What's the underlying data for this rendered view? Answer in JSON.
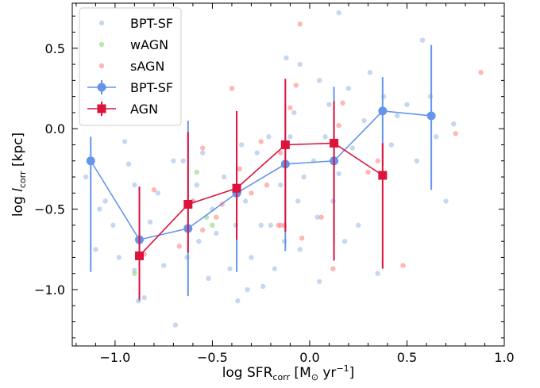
{
  "chart_data": {
    "type": "scatter",
    "xlabel": {
      "pre": "log SFR",
      "sub": "corr",
      "mid": " [M",
      "sun": "⊙",
      "yr": " yr",
      "sup": "−1",
      "post": "]"
    },
    "ylabel": {
      "pre": "log ",
      "l": "l",
      "sub": "corr",
      "post": " [kpc]"
    },
    "xlim": [
      -1.22,
      1.0
    ],
    "ylim": [
      -1.35,
      0.78
    ],
    "xticks": [
      -1.0,
      -0.5,
      0.0,
      0.5,
      1.0
    ],
    "xtick_labels": [
      "−1.0",
      "−0.5",
      "0.0",
      "0.5",
      "1.0"
    ],
    "yticks": [
      -1.0,
      -0.5,
      0.0,
      0.5
    ],
    "ytick_labels": [
      "−1.0",
      "−0.5",
      "0.0",
      "0.5"
    ],
    "colors": {
      "bpt_sf_points": "#aec7e8",
      "wagn_points": "#98df8a",
      "sagn_points": "#ff9896",
      "bpt_sf_line": "#6495ed",
      "agn_line": "#dc143c"
    },
    "legend_position": "upper-left",
    "legend": [
      {
        "label": "BPT-SF",
        "kind": "points",
        "color": "#aec7e8"
      },
      {
        "label": "wAGN",
        "kind": "points",
        "color": "#98df8a"
      },
      {
        "label": "sAGN",
        "kind": "points",
        "color": "#ff9896"
      },
      {
        "label": "BPT-SF",
        "kind": "line-circle",
        "color": "#6495ed"
      },
      {
        "label": "AGN",
        "kind": "line-square",
        "color": "#dc143c"
      }
    ],
    "scatter": {
      "bpt_sf": [
        [
          -1.15,
          -0.3
        ],
        [
          -1.1,
          -0.75
        ],
        [
          -1.08,
          -0.5
        ],
        [
          -1.05,
          -0.45
        ],
        [
          -1.01,
          -0.6
        ],
        [
          -0.98,
          -0.8
        ],
        [
          -0.93,
          -0.22
        ],
        [
          -0.95,
          -0.08
        ],
        [
          -0.9,
          -0.35
        ],
        [
          -0.9,
          -0.88
        ],
        [
          -0.88,
          -1.07
        ],
        [
          -0.85,
          -1.05
        ],
        [
          -0.82,
          -0.58
        ],
        [
          -0.78,
          -0.4
        ],
        [
          -0.75,
          -0.85
        ],
        [
          -0.7,
          -0.2
        ],
        [
          -0.69,
          -1.22
        ],
        [
          -0.65,
          -0.2
        ],
        [
          -0.63,
          -0.8
        ],
        [
          -0.6,
          -0.45
        ],
        [
          -0.58,
          -0.35
        ],
        [
          -0.57,
          -0.7
        ],
        [
          -0.55,
          -0.15
        ],
        [
          -0.52,
          -0.93
        ],
        [
          -0.5,
          -0.5
        ],
        [
          -0.48,
          -0.65
        ],
        [
          -0.44,
          -0.3
        ],
        [
          -0.41,
          -0.87
        ],
        [
          -0.38,
          -0.6
        ],
        [
          -0.37,
          -1.07
        ],
        [
          -0.35,
          -0.1
        ],
        [
          -0.33,
          -0.45
        ],
        [
          -0.3,
          -0.8
        ],
        [
          -0.27,
          -0.15
        ],
        [
          -0.25,
          -0.6
        ],
        [
          -0.24,
          -0.98
        ],
        [
          -0.21,
          -0.05
        ],
        [
          -0.2,
          -0.6
        ],
        [
          -0.18,
          -0.87
        ],
        [
          -0.15,
          -0.35
        ],
        [
          -0.13,
          -0.7
        ],
        [
          -0.1,
          -0.05
        ],
        [
          -0.08,
          0.1
        ],
        [
          -0.06,
          -0.45
        ],
        [
          -0.05,
          -0.75
        ],
        [
          -0.03,
          -0.3
        ],
        [
          0.02,
          -0.2
        ],
        [
          0.04,
          -0.55
        ],
        [
          0.05,
          -0.95
        ],
        [
          0.08,
          -0.05
        ],
        [
          0.1,
          0.15
        ],
        [
          0.12,
          -0.45
        ],
        [
          0.15,
          -0.28
        ],
        [
          0.18,
          -0.7
        ],
        [
          0.2,
          0.25
        ],
        [
          0.22,
          -0.12
        ],
        [
          0.25,
          -0.6
        ],
        [
          0.28,
          0.05
        ],
        [
          0.31,
          0.35
        ],
        [
          0.35,
          -0.9
        ],
        [
          0.38,
          0.2
        ],
        [
          0.42,
          -0.1
        ],
        [
          0.45,
          0.08
        ],
        [
          0.5,
          0.15
        ],
        [
          0.55,
          -0.2
        ],
        [
          0.58,
          0.55
        ],
        [
          0.62,
          0.2
        ],
        [
          0.65,
          -0.05
        ],
        [
          0.7,
          -0.45
        ],
        [
          0.74,
          0.03
        ],
        [
          -0.12,
          0.44
        ],
        [
          -0.05,
          0.4
        ],
        [
          0.15,
          0.72
        ],
        [
          -0.32,
          -1.0
        ],
        [
          0.05,
          0.3
        ]
      ],
      "wagn": [
        [
          -0.9,
          -0.9
        ],
        [
          -0.58,
          -0.27
        ],
        [
          -0.53,
          -0.55
        ],
        [
          -0.5,
          -0.6
        ]
      ],
      "sagn": [
        [
          -0.85,
          -0.78
        ],
        [
          -0.8,
          -0.38
        ],
        [
          -0.67,
          -0.73
        ],
        [
          -0.6,
          -0.45
        ],
        [
          -0.55,
          -0.63
        ],
        [
          -0.55,
          -0.12
        ],
        [
          -0.48,
          -0.55
        ],
        [
          -0.45,
          -0.47
        ],
        [
          -0.4,
          0.25
        ],
        [
          -0.36,
          -0.25
        ],
        [
          -0.3,
          -0.4
        ],
        [
          -0.25,
          -0.08
        ],
        [
          -0.22,
          -0.35
        ],
        [
          -0.16,
          -0.6
        ],
        [
          -0.15,
          -0.15
        ],
        [
          -0.13,
          -0.6
        ],
        [
          -0.1,
          0.13
        ],
        [
          -0.07,
          0.27
        ],
        [
          -0.05,
          0.65
        ],
        [
          -0.04,
          -0.68
        ],
        [
          0.06,
          -0.55
        ],
        [
          0.12,
          -0.87
        ],
        [
          0.15,
          0.02
        ],
        [
          0.17,
          0.16
        ],
        [
          0.3,
          -0.27
        ],
        [
          0.35,
          -0.2
        ],
        [
          0.48,
          -0.85
        ],
        [
          0.75,
          -0.03
        ],
        [
          0.88,
          0.35
        ],
        [
          -0.15,
          -0.6
        ]
      ]
    },
    "series": [
      {
        "name": "BPT-SF",
        "marker": "circle",
        "x": [
          -1.125,
          -0.875,
          -0.625,
          -0.375,
          -0.125,
          0.125,
          0.375,
          0.625
        ],
        "y": [
          -0.2,
          -0.69,
          -0.62,
          -0.4,
          -0.22,
          -0.2,
          0.11,
          0.08
        ],
        "yerr_low": [
          -0.89,
          -1.07,
          -1.04,
          -0.89,
          -0.76,
          -0.71,
          -0.23,
          -0.38
        ],
        "yerr_high": [
          -0.05,
          -0.36,
          0.05,
          0.05,
          0.16,
          0.26,
          0.32,
          0.52
        ]
      },
      {
        "name": "AGN",
        "marker": "square",
        "x": [
          -0.875,
          -0.625,
          -0.375,
          -0.125,
          0.125,
          0.375
        ],
        "y": [
          -0.79,
          -0.47,
          -0.37,
          -0.1,
          -0.09,
          -0.29
        ],
        "yerr_low": [
          -1.06,
          -0.77,
          -0.69,
          -0.64,
          -0.82,
          -0.87
        ],
        "yerr_high": [
          -0.36,
          -0.02,
          0.11,
          0.31,
          0.17,
          -0.09
        ]
      }
    ]
  }
}
